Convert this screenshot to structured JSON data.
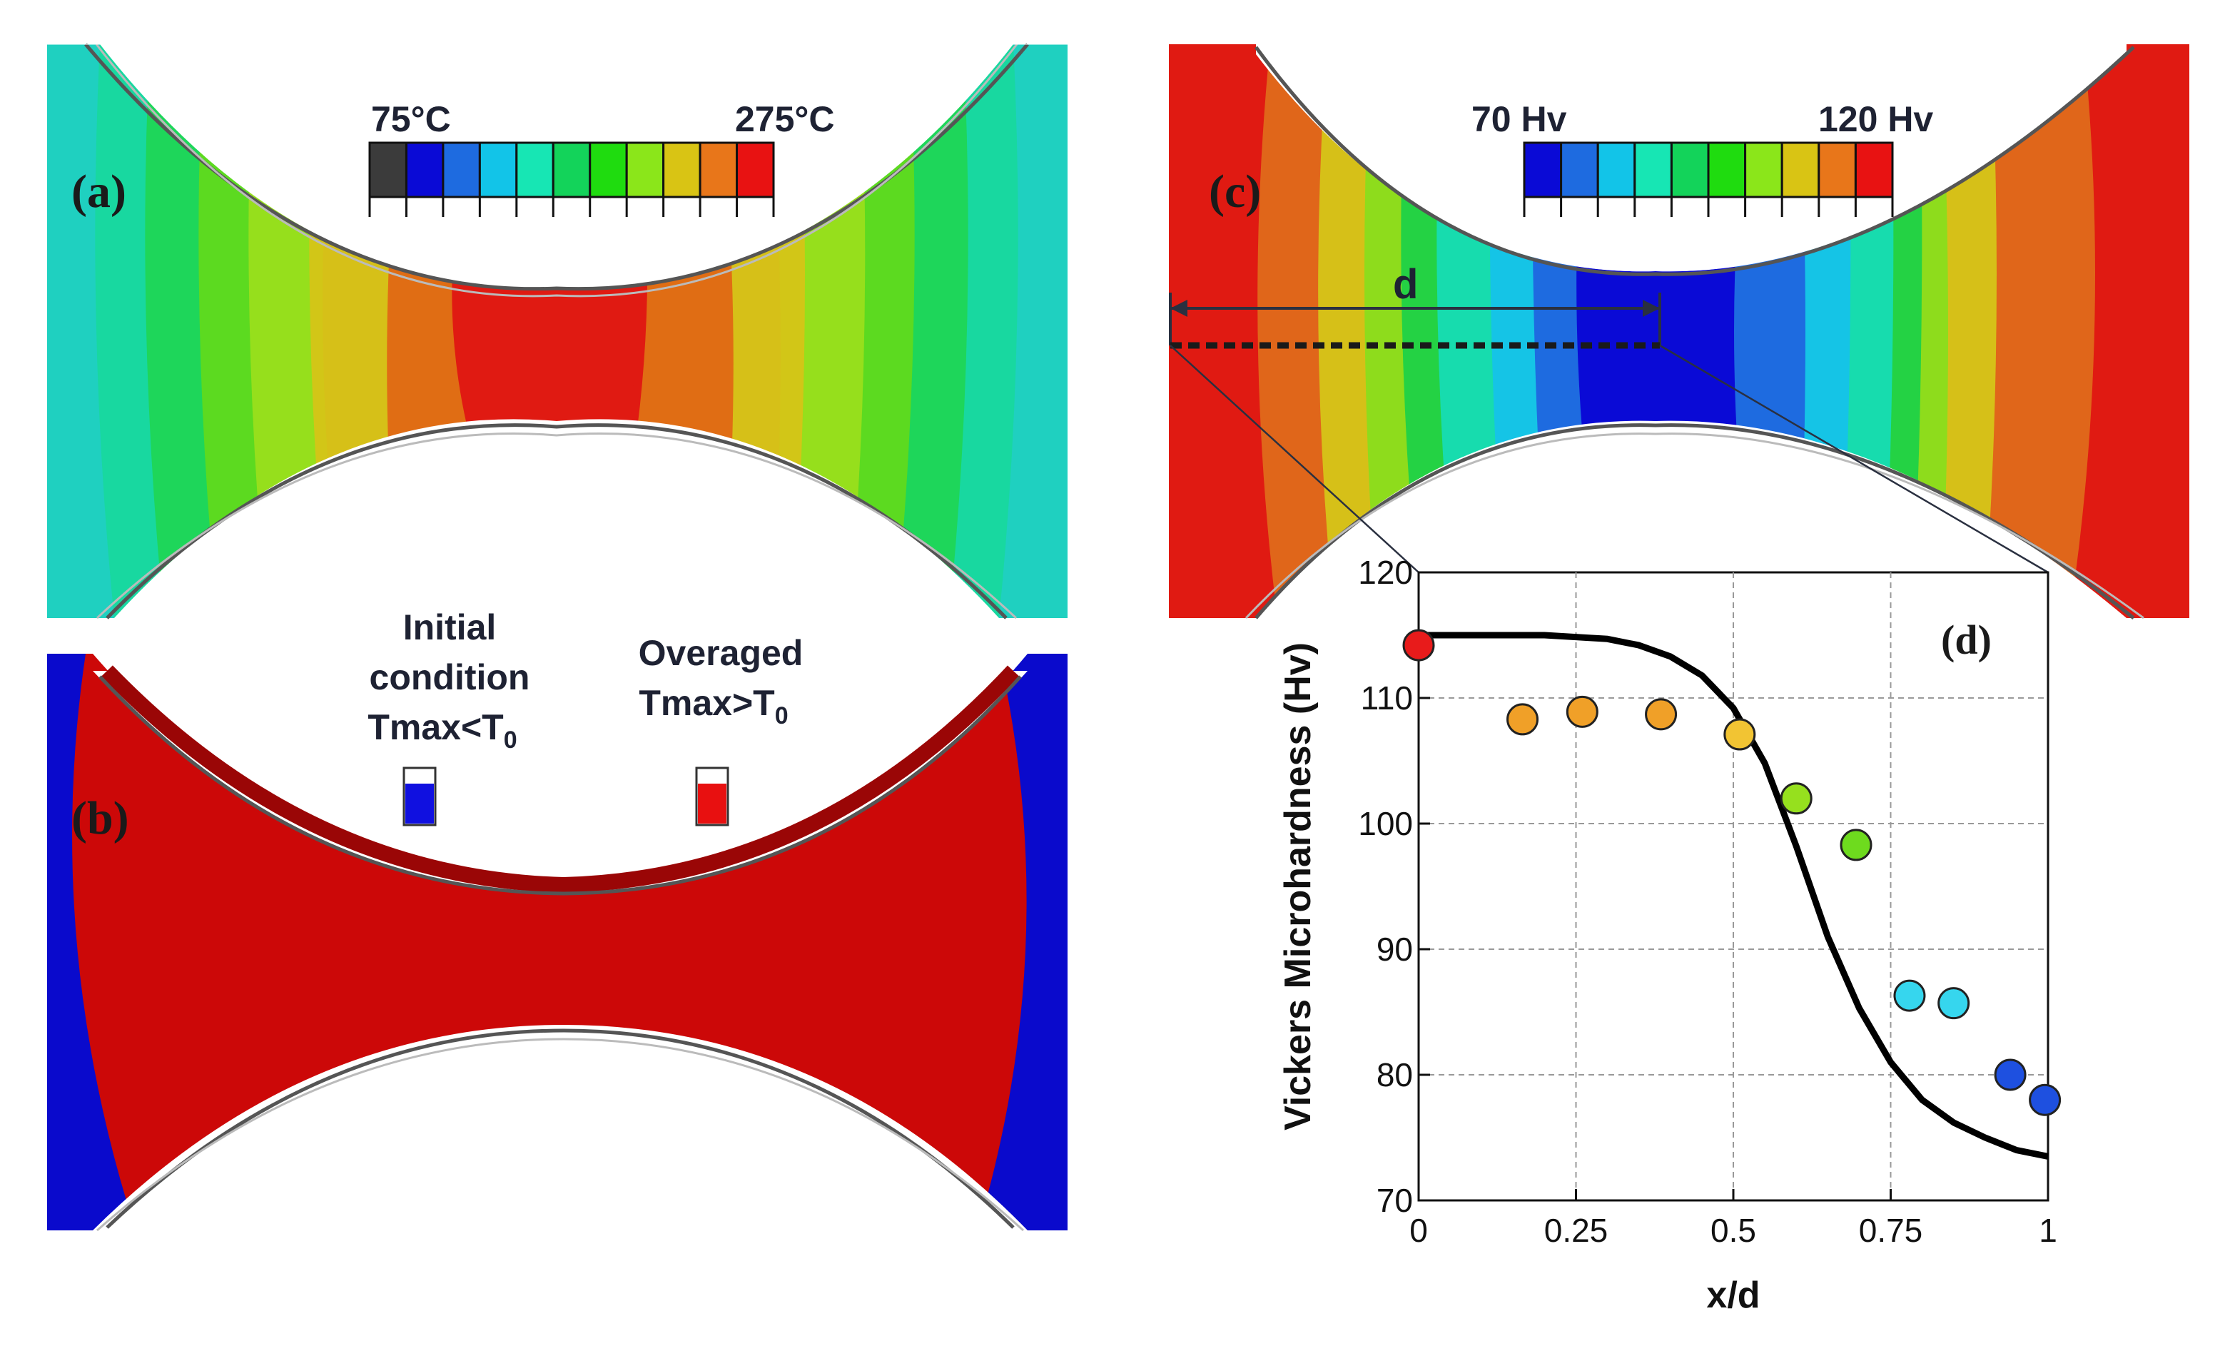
{
  "panels": {
    "a": {
      "label": "(a)",
      "colorbar": {
        "min_label": "75°C",
        "max_label": "275°C",
        "colors": [
          "#3b3b3b",
          "#0a0ad6",
          "#1e6be0",
          "#12c4e8",
          "#17e6b4",
          "#13d35a",
          "#1fdc0f",
          "#8be61a",
          "#d9c414",
          "#e8761a",
          "#e81212"
        ]
      }
    },
    "b": {
      "label": "(b)",
      "legend": [
        {
          "line1": "Initial",
          "line2": "condition",
          "line3": "Tmax<T",
          "sub": "0",
          "color": "#1010e0"
        },
        {
          "line1": "Overaged",
          "line2": "Tmax>T",
          "sub": "0",
          "color": "#e81010"
        }
      ]
    },
    "c": {
      "label": "(c)",
      "colorbar": {
        "min_label": "70 Hv",
        "max_label": "120 Hv",
        "colors": [
          "#0a0ad6",
          "#1e6be0",
          "#12c4e8",
          "#17e6b4",
          "#13d35a",
          "#1fdc0f",
          "#8be61a",
          "#d9c414",
          "#e8761a",
          "#e81212"
        ]
      },
      "dimension_label": "d"
    }
  },
  "chart_data": {
    "type": "scatter",
    "panel_label": "(d)",
    "xlabel": "x/d",
    "ylabel": "Vickers Microhardness (Hv)",
    "xlim": [
      0,
      1
    ],
    "ylim": [
      70,
      120
    ],
    "x_ticks": [
      "0",
      "0.25",
      "0.5",
      "0.75",
      "1"
    ],
    "x_tick_values": [
      0,
      0.25,
      0.5,
      0.75,
      1
    ],
    "y_ticks": [
      "70",
      "80",
      "90",
      "100",
      "110",
      "120"
    ],
    "y_tick_values": [
      70,
      80,
      90,
      100,
      110,
      120
    ],
    "grid": true,
    "points": [
      {
        "x": 0.0,
        "y": 114.2,
        "color": "#e81b1b"
      },
      {
        "x": 0.165,
        "y": 108.3,
        "color": "#f0a028"
      },
      {
        "x": 0.26,
        "y": 108.9,
        "color": "#f0a028"
      },
      {
        "x": 0.385,
        "y": 108.7,
        "color": "#f0a028"
      },
      {
        "x": 0.51,
        "y": 107.1,
        "color": "#f2c433"
      },
      {
        "x": 0.6,
        "y": 102.0,
        "color": "#96e01e"
      },
      {
        "x": 0.695,
        "y": 98.3,
        "color": "#6edb1e"
      },
      {
        "x": 0.78,
        "y": 86.3,
        "color": "#36d6ee"
      },
      {
        "x": 0.85,
        "y": 85.7,
        "color": "#36d6ee"
      },
      {
        "x": 0.94,
        "y": 80.0,
        "color": "#1e50e0"
      },
      {
        "x": 0.995,
        "y": 78.0,
        "color": "#1e50e0"
      }
    ],
    "model_curve": {
      "x": [
        0,
        0.1,
        0.2,
        0.3,
        0.35,
        0.4,
        0.45,
        0.5,
        0.55,
        0.6,
        0.65,
        0.7,
        0.75,
        0.8,
        0.85,
        0.9,
        0.95,
        1.0
      ],
      "y": [
        115.0,
        115.0,
        115.0,
        114.7,
        114.2,
        113.3,
        111.8,
        109.2,
        104.8,
        98.2,
        91.0,
        85.3,
        81.0,
        78.0,
        76.2,
        75.0,
        74.0,
        73.5
      ]
    }
  }
}
